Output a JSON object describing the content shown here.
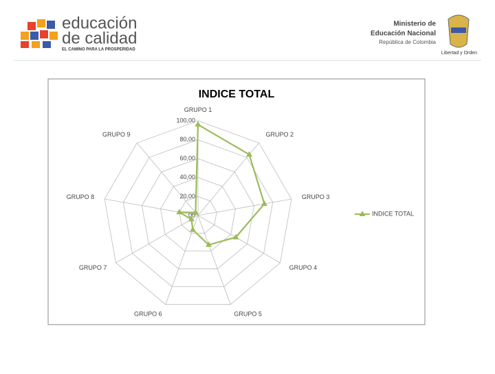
{
  "header": {
    "logo_line1": "educación",
    "logo_line2": "de calidad",
    "logo_tagline": "EL CAMINO PARA LA PROSPERIDAD",
    "ministry_line1": "Ministerio de",
    "ministry_line2": "Educación Nacional",
    "ministry_line3": "República de Colombia",
    "motto": "Libertad y Orden"
  },
  "chart_data": {
    "type": "radar",
    "title": "INDICE TOTAL",
    "categories": [
      "GRUPO 1",
      "GRUPO 2",
      "GRUPO 3",
      "GRUPO 4",
      "GRUPO 5",
      "GRUPO 6",
      "GRUPO 7",
      "GRUPO 8",
      "GRUPO 9"
    ],
    "series": [
      {
        "name": "INDICE TOTAL",
        "color": "#9bbb59",
        "values": [
          96,
          84,
          71,
          46,
          33,
          16,
          8,
          20,
          4
        ]
      }
    ],
    "ylim": [
      0,
      100
    ],
    "yticks": [
      {
        "value": 0,
        "label": ",00"
      },
      {
        "value": 20,
        "label": "20,00"
      },
      {
        "value": 40,
        "label": "40,00"
      },
      {
        "value": 60,
        "label": "60,00"
      },
      {
        "value": 80,
        "label": "80,00"
      },
      {
        "value": 100,
        "label": "100,00"
      }
    ],
    "grid": true,
    "legend": "right"
  }
}
